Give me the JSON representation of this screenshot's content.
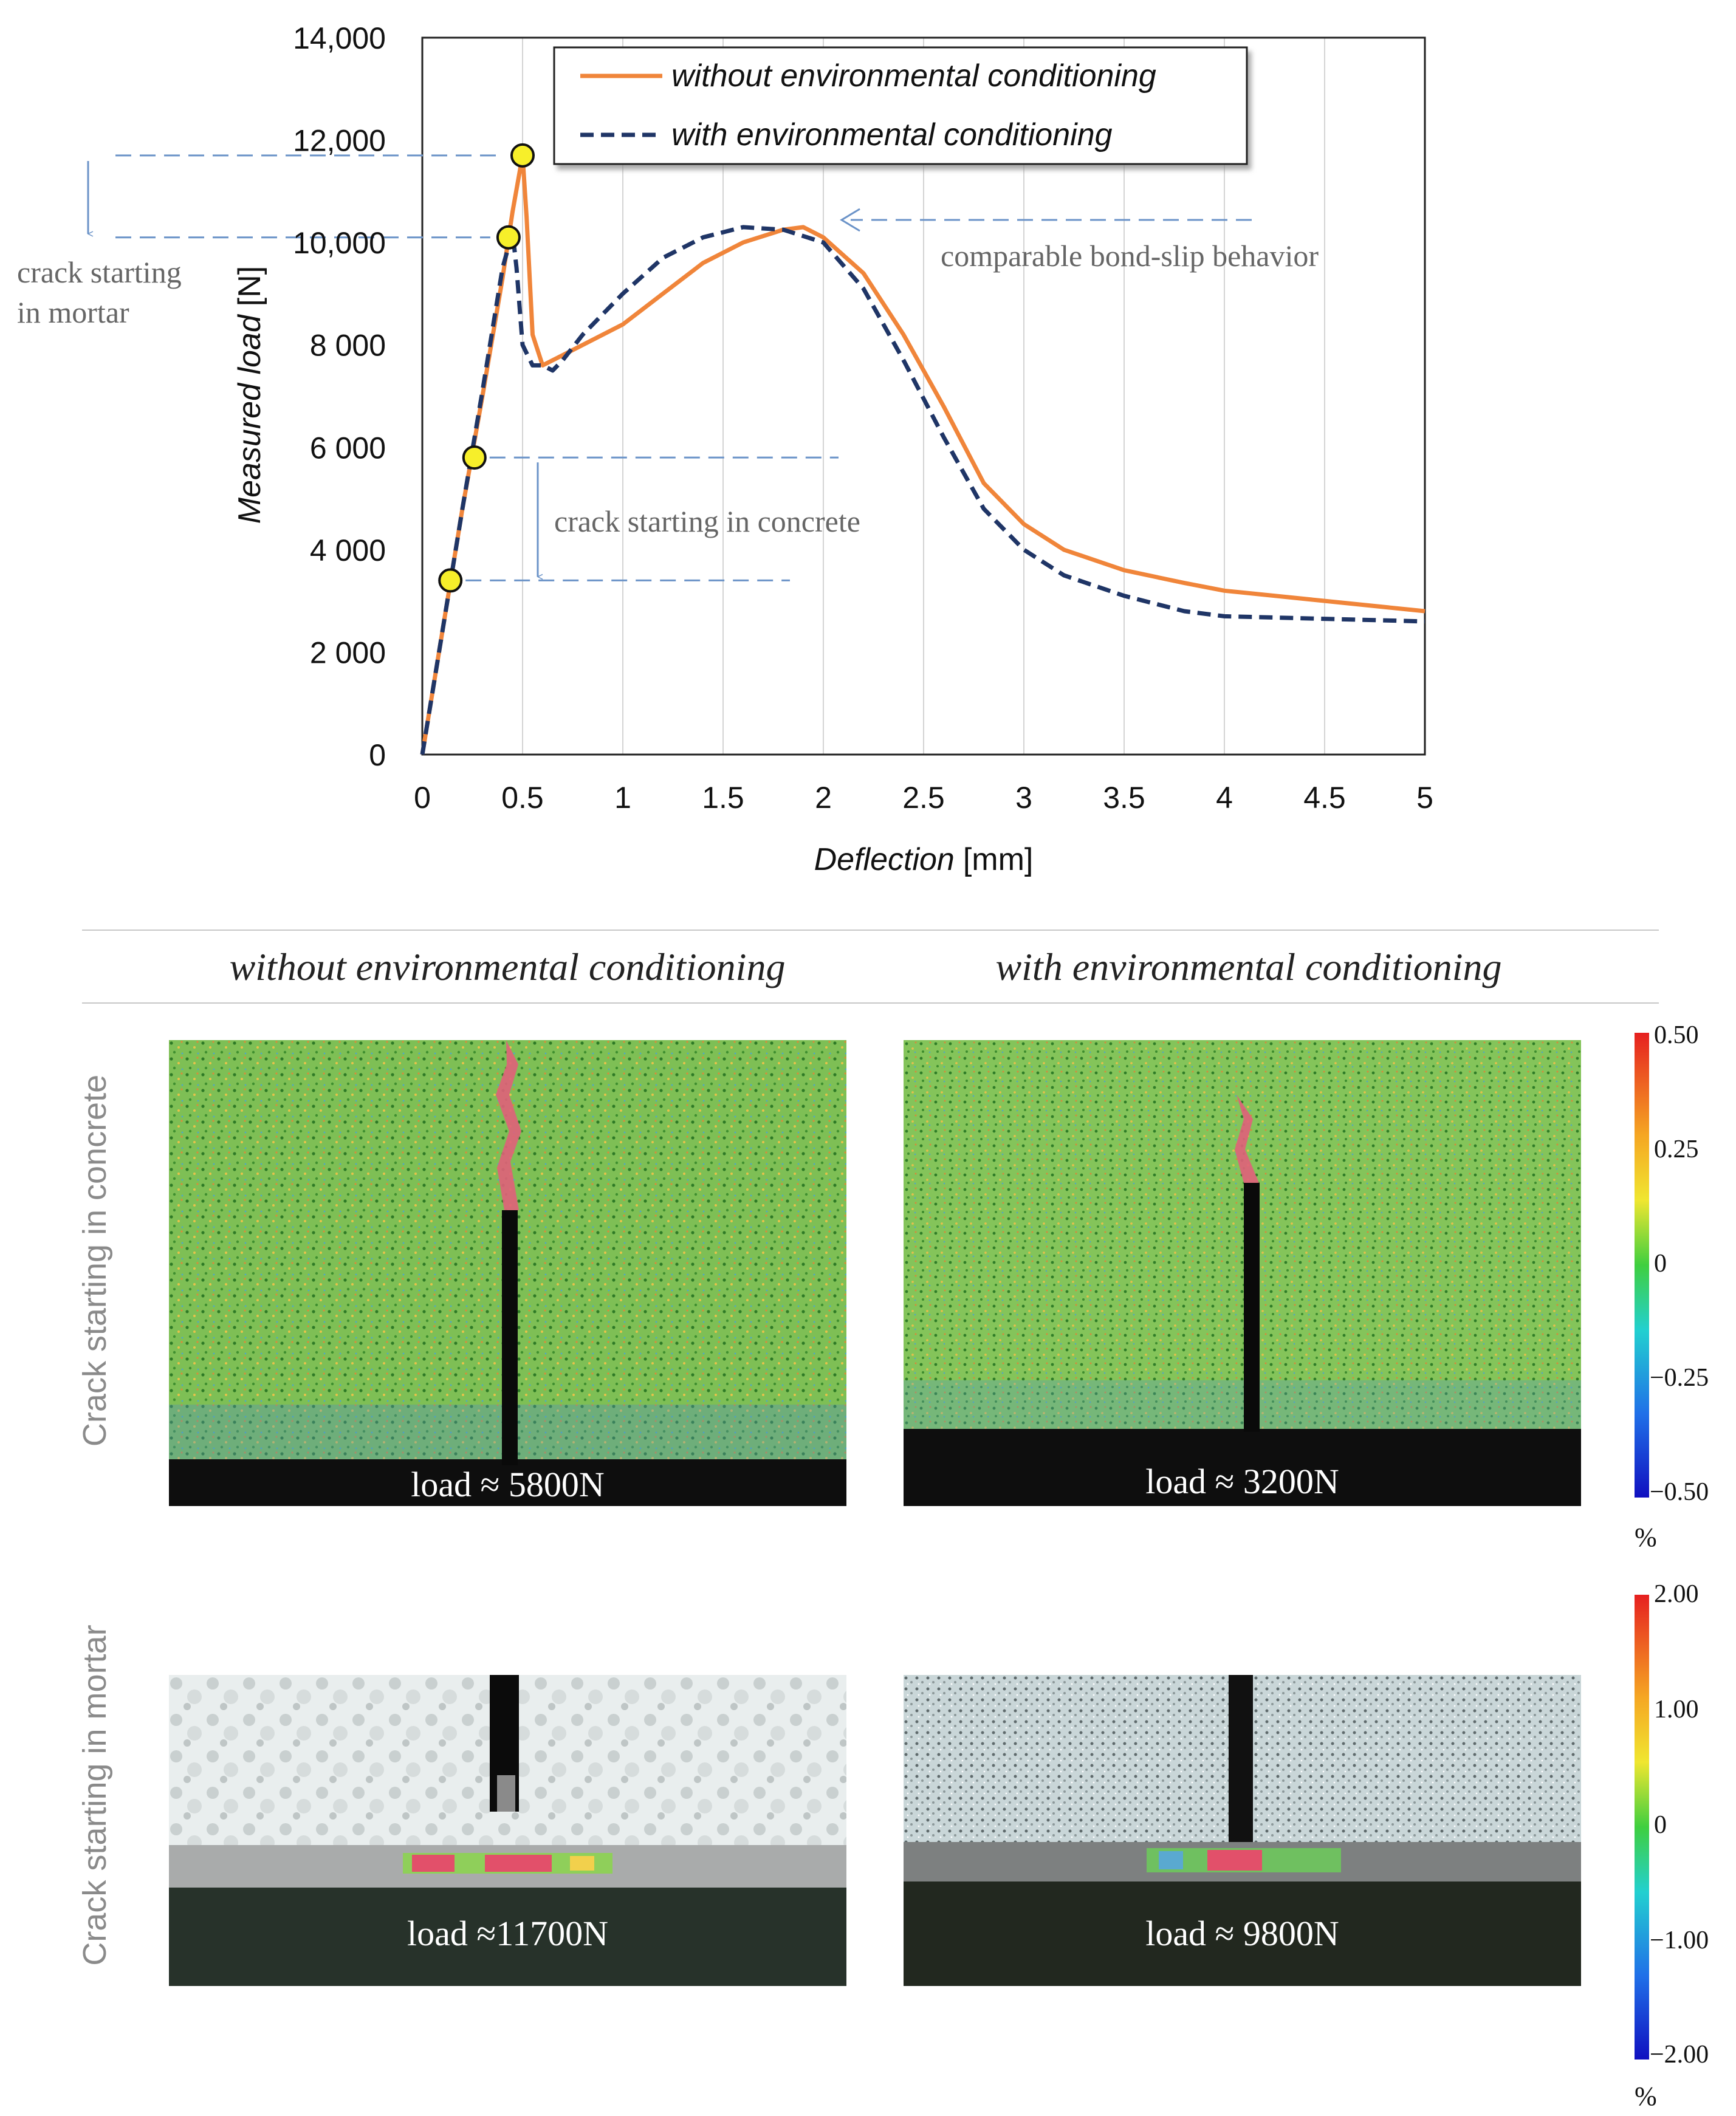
{
  "chart_data": {
    "type": "line",
    "xlabel": "Deflection",
    "xlabel_unit": "[mm]",
    "ylabel": "Measured load",
    "ylabel_unit": "[N]",
    "xlim": [
      0,
      5
    ],
    "ylim": [
      0,
      14000
    ],
    "x_ticks": [
      "0",
      "0.5",
      "1",
      "1.5",
      "2",
      "2.5",
      "3",
      "3.5",
      "4",
      "4.5",
      "5"
    ],
    "x_tick_values": [
      0,
      0.5,
      1,
      1.5,
      2,
      2.5,
      3,
      3.5,
      4,
      4.5,
      5
    ],
    "y_ticks": [
      "0",
      "2 000",
      "4 000",
      "6 000",
      "8 000",
      "10,000",
      "12,000",
      "14,000"
    ],
    "y_tick_values": [
      0,
      2000,
      4000,
      6000,
      8000,
      10000,
      12000,
      14000
    ],
    "grid": "vertical",
    "legend_position": "top",
    "series": [
      {
        "name": "without environmental conditioning",
        "color": "#f0853a",
        "style": "solid",
        "x": [
          0,
          0.1,
          0.2,
          0.3,
          0.4,
          0.45,
          0.5,
          0.52,
          0.55,
          0.6,
          0.65,
          0.7,
          0.8,
          1.0,
          1.2,
          1.4,
          1.6,
          1.8,
          1.9,
          2.0,
          2.2,
          2.4,
          2.6,
          2.8,
          3.0,
          3.2,
          3.5,
          3.8,
          4.0,
          4.5,
          5.0
        ],
        "y": [
          0,
          2400,
          4800,
          7000,
          9300,
          10600,
          11700,
          10500,
          8200,
          7600,
          7700,
          7800,
          8000,
          8400,
          9000,
          9600,
          10000,
          10250,
          10300,
          10100,
          9400,
          8200,
          6800,
          5300,
          4500,
          4000,
          3600,
          3350,
          3200,
          3000,
          2800
        ]
      },
      {
        "name": "with environmental conditioning",
        "color": "#1f3566",
        "style": "dashed",
        "x": [
          0,
          0.1,
          0.2,
          0.3,
          0.4,
          0.45,
          0.47,
          0.5,
          0.55,
          0.6,
          0.65,
          0.7,
          0.8,
          1.0,
          1.2,
          1.4,
          1.6,
          1.8,
          2.0,
          2.2,
          2.4,
          2.6,
          2.8,
          3.0,
          3.2,
          3.5,
          3.8,
          4.0,
          4.5,
          5.0
        ],
        "y": [
          0,
          2400,
          4800,
          7100,
          9500,
          10200,
          9500,
          8000,
          7600,
          7600,
          7500,
          7700,
          8200,
          9000,
          9700,
          10100,
          10300,
          10250,
          10000,
          9100,
          7700,
          6200,
          4800,
          4000,
          3500,
          3100,
          2800,
          2700,
          2650,
          2600
        ]
      }
    ],
    "markers": [
      {
        "x": 0.14,
        "y": 3400
      },
      {
        "x": 0.26,
        "y": 5800
      },
      {
        "x": 0.43,
        "y": 10100
      },
      {
        "x": 0.5,
        "y": 11700
      }
    ],
    "annotations": {
      "mortar": "crack starting in mortar",
      "mortar_line1": "crack starting",
      "mortar_line2": "in mortar",
      "concrete": "crack starting in concrete",
      "bond_slip": "comparable bond-slip behavior"
    }
  },
  "columns": {
    "left": "without environmental conditioning",
    "right": "with environmental conditioning"
  },
  "rows": {
    "top": "Crack starting in concrete",
    "bottom": "Crack starting in mortar"
  },
  "panels": {
    "concrete_left_label": "load  ≈ 5800N",
    "concrete_right_label": "load  ≈ 3200N",
    "mortar_left_label": "load  ≈11700N",
    "mortar_right_label": "load  ≈ 9800N"
  },
  "colorbars": {
    "concrete": {
      "ticks": [
        "0.50",
        "0.25",
        "0",
        "−0.25",
        "−0.50"
      ],
      "unit": "%"
    },
    "mortar": {
      "ticks": [
        "2.00",
        "1.00",
        "0",
        "−1.00",
        "−2.00"
      ],
      "unit": "%"
    }
  },
  "colors": {
    "orange": "#f0853a",
    "navy": "#1f3566",
    "annotation_blue": "#6b93c8",
    "marker_fill": "#f7ef2a"
  }
}
